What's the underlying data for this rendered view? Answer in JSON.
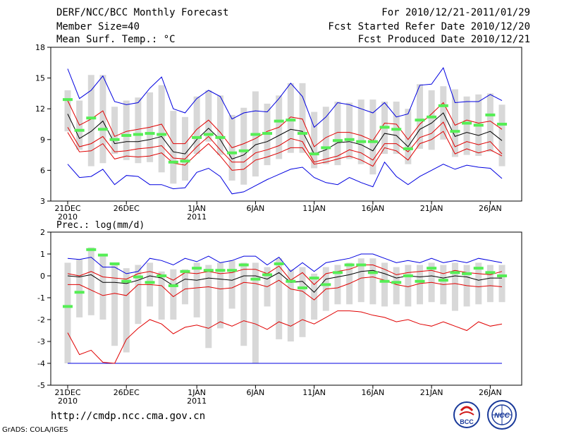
{
  "header": {
    "title": "DERF/NCC/BCC Monthly Forecast",
    "member_size": "Member Size=40",
    "variable": "Mean Surf. Temp.: °C",
    "forecast_period": "For 2010/12/21-2011/01/29",
    "started_date": "Fcst Started Refer Date 2010/12/20",
    "produced_date": "Fcst Produced Date 2010/12/21"
  },
  "footer": {
    "url": "http://cmdp.ncc.cma.gov.cn",
    "grads_credit": "GrADS: COLA/IGES",
    "logo_bcc_text": "BCC",
    "logo_ncc_text": "NCC"
  },
  "x_axis": {
    "days": 38,
    "tick_days": [
      0,
      5,
      11,
      16,
      21,
      26,
      31,
      36
    ],
    "tick_labels": [
      "21DEC",
      "26DEC",
      "1JAN",
      "6JAN",
      "11JAN",
      "16JAN",
      "21JAN",
      "26JAN"
    ],
    "year_labels": [
      {
        "day": 0,
        "text": "2010"
      },
      {
        "day": 11,
        "text": "2011"
      }
    ]
  },
  "colors": {
    "box": "#d8d8d8",
    "ensemble_mean": "#000000",
    "inner_band": "#e00000",
    "outer_band": "#0000e0",
    "observed": "#55ee55",
    "frame": "#000000"
  },
  "chart_data": [
    {
      "type": "line",
      "title": "Mean Surf. Temp.: °C",
      "ylim": [
        3,
        18
      ],
      "yticks": [
        3,
        6,
        9,
        12,
        15,
        18
      ],
      "series": [
        {
          "name": "max",
          "values": [
            15.9,
            13.0,
            13.8,
            15.2,
            12.7,
            12.4,
            12.6,
            14.0,
            15.1,
            12.0,
            11.6,
            13.0,
            13.8,
            13.2,
            11.0,
            11.6,
            11.8,
            11.7,
            13.0,
            14.5,
            13.2,
            10.2,
            11.2,
            12.6,
            12.4,
            12.0,
            11.6,
            12.6,
            11.2,
            11.5,
            14.3,
            14.4,
            16.0,
            12.6,
            12.7,
            12.7,
            13.4,
            12.8
          ]
        },
        {
          "name": "upper",
          "values": [
            12.8,
            10.4,
            11.0,
            11.8,
            9.3,
            9.8,
            10.0,
            10.2,
            10.5,
            8.6,
            8.6,
            10.0,
            10.9,
            9.7,
            8.2,
            8.6,
            9.1,
            9.8,
            10.2,
            11.2,
            11.0,
            8.3,
            9.2,
            9.7,
            9.7,
            9.4,
            8.9,
            10.6,
            10.5,
            9.0,
            10.5,
            11.5,
            12.6,
            10.4,
            10.9,
            10.6,
            10.8,
            10.0
          ]
        },
        {
          "name": "mean",
          "values": [
            11.5,
            9.1,
            9.8,
            10.8,
            8.6,
            8.8,
            8.8,
            9.0,
            9.3,
            7.8,
            7.6,
            9.0,
            10.1,
            9.0,
            7.1,
            7.5,
            8.5,
            8.8,
            9.4,
            10.0,
            9.8,
            7.6,
            8.0,
            8.7,
            8.8,
            8.5,
            7.9,
            9.6,
            9.4,
            8.3,
            10.0,
            10.6,
            11.6,
            9.3,
            9.7,
            9.4,
            9.8,
            8.9
          ]
        },
        {
          "name": "lower",
          "values": [
            10.2,
            8.3,
            8.6,
            9.3,
            7.8,
            7.9,
            8.1,
            8.2,
            8.4,
            7.2,
            7.1,
            8.3,
            9.3,
            8.0,
            6.8,
            6.8,
            7.7,
            8.0,
            8.4,
            9.1,
            8.8,
            6.8,
            7.1,
            7.4,
            8.0,
            7.7,
            7.0,
            8.6,
            8.6,
            7.8,
            9.2,
            9.6,
            10.7,
            8.3,
            8.8,
            8.5,
            8.8,
            7.6
          ]
        },
        {
          "name": "inner_low",
          "values": [
            9.7,
            7.8,
            7.9,
            8.6,
            7.1,
            7.4,
            7.3,
            7.4,
            7.7,
            6.7,
            6.5,
            7.6,
            8.6,
            7.4,
            6.0,
            6.1,
            7.0,
            7.3,
            7.7,
            8.2,
            8.2,
            6.6,
            6.8,
            7.1,
            7.4,
            7.0,
            6.4,
            8.2,
            7.9,
            7.0,
            8.6,
            9.0,
            9.8,
            7.6,
            8.1,
            7.7,
            8.0,
            7.4
          ]
        },
        {
          "name": "min",
          "values": [
            6.6,
            5.3,
            5.4,
            6.1,
            4.6,
            5.5,
            5.4,
            4.6,
            4.6,
            4.2,
            4.3,
            5.8,
            6.2,
            5.4,
            3.7,
            3.9,
            4.5,
            5.1,
            5.6,
            6.1,
            6.3,
            5.3,
            4.8,
            4.6,
            5.3,
            4.8,
            4.4,
            6.8,
            5.4,
            4.6,
            5.4,
            6.0,
            6.6,
            6.1,
            6.5,
            6.3,
            6.2,
            5.2
          ]
        },
        {
          "name": "box_high",
          "values": [
            13.8,
            12.8,
            15.3,
            15.3,
            12.2,
            12.8,
            13.1,
            13.6,
            14.3,
            11.8,
            11.2,
            13.2,
            13.8,
            13.3,
            11.4,
            12.1,
            13.7,
            12.5,
            13.3,
            14.5,
            14.5,
            11.7,
            12.2,
            12.7,
            12.6,
            12.9,
            12.9,
            12.7,
            12.7,
            12.0,
            14.4,
            13.8,
            14.2,
            13.9,
            13.2,
            13.4,
            13.5,
            12.4
          ]
        },
        {
          "name": "box_low",
          "values": [
            9.8,
            8.0,
            6.4,
            6.7,
            7.6,
            7.0,
            6.7,
            6.8,
            5.8,
            4.7,
            5.0,
            7.6,
            8.8,
            7.5,
            5.0,
            4.6,
            5.4,
            6.5,
            7.1,
            7.7,
            7.7,
            6.2,
            6.6,
            6.5,
            7.1,
            6.6,
            5.6,
            7.6,
            7.6,
            6.6,
            8.1,
            8.0,
            9.0,
            7.3,
            7.5,
            7.4,
            7.8,
            6.4
          ]
        },
        {
          "name": "observed",
          "values": [
            12.9,
            9.9,
            11.1,
            10.0,
            9.0,
            9.4,
            9.5,
            9.6,
            9.5,
            6.8,
            6.9,
            9.2,
            9.5,
            9.2,
            7.7,
            7.9,
            9.5,
            9.6,
            10.8,
            10.9,
            9.6,
            7.6,
            8.2,
            8.9,
            9.0,
            8.8,
            8.8,
            10.2,
            10.0,
            8.1,
            10.9,
            11.2,
            12.3,
            9.8,
            10.6,
            10.4,
            11.4,
            10.5
          ]
        }
      ]
    },
    {
      "type": "line",
      "title": "Prec.: log(mm/d)",
      "ylim": [
        -5,
        2
      ],
      "yticks": [
        -5,
        -4,
        -3,
        -2,
        -1,
        0,
        1,
        2
      ],
      "series": [
        {
          "name": "max",
          "values": [
            0.8,
            0.75,
            0.85,
            0.4,
            0.4,
            0.1,
            0.2,
            0.8,
            0.7,
            0.5,
            0.8,
            0.65,
            0.9,
            0.6,
            0.7,
            0.9,
            0.9,
            0.5,
            0.85,
            0.2,
            0.6,
            0.2,
            0.6,
            0.7,
            0.8,
            1.0,
            1.0,
            0.8,
            0.6,
            0.7,
            0.6,
            0.8,
            0.6,
            0.7,
            0.6,
            0.8,
            0.7,
            0.6
          ]
        },
        {
          "name": "upper",
          "values": [
            0.1,
            0.0,
            0.2,
            -0.05,
            -0.1,
            -0.15,
            0.1,
            0.2,
            0.05,
            -0.2,
            0.15,
            0.1,
            0.2,
            0.1,
            0.15,
            0.3,
            0.3,
            0.1,
            0.45,
            -0.2,
            0.15,
            -0.4,
            0.1,
            0.2,
            0.3,
            0.5,
            0.5,
            0.3,
            0.05,
            0.15,
            0.2,
            0.25,
            0.1,
            0.25,
            0.15,
            0.1,
            0.05,
            0.2
          ]
        },
        {
          "name": "mean",
          "values": [
            0.0,
            -0.05,
            0.05,
            -0.3,
            -0.3,
            -0.35,
            -0.2,
            0.0,
            -0.1,
            -0.45,
            -0.15,
            -0.2,
            -0.1,
            -0.15,
            -0.2,
            0.0,
            0.0,
            -0.15,
            0.15,
            -0.3,
            -0.25,
            -0.75,
            -0.15,
            -0.05,
            0.05,
            0.2,
            0.25,
            0.1,
            -0.1,
            0.0,
            -0.05,
            0.0,
            -0.1,
            0.0,
            -0.05,
            -0.2,
            -0.1,
            -0.1
          ]
        },
        {
          "name": "lower",
          "values": [
            -0.4,
            -0.4,
            -0.65,
            -0.9,
            -0.8,
            -0.9,
            -0.4,
            -0.4,
            -0.45,
            -0.95,
            -0.6,
            -0.55,
            -0.5,
            -0.6,
            -0.55,
            -0.3,
            -0.35,
            -0.5,
            -0.2,
            -0.6,
            -0.7,
            -1.1,
            -0.6,
            -0.55,
            -0.35,
            -0.1,
            -0.05,
            -0.2,
            -0.4,
            -0.5,
            -0.35,
            -0.3,
            -0.4,
            -0.35,
            -0.45,
            -0.5,
            -0.45,
            -0.5
          ]
        },
        {
          "name": "inner_low",
          "values": [
            -2.6,
            -3.6,
            -3.4,
            -3.95,
            -4.0,
            -2.9,
            -2.4,
            -2.0,
            -2.2,
            -2.65,
            -2.35,
            -2.25,
            -2.4,
            -2.1,
            -2.3,
            -2.05,
            -2.2,
            -2.45,
            -2.1,
            -2.3,
            -2.0,
            -2.2,
            -1.9,
            -1.6,
            -1.6,
            -1.65,
            -1.8,
            -1.9,
            -2.1,
            -2.0,
            -2.2,
            -2.3,
            -2.1,
            -2.3,
            -2.5,
            -2.1,
            -2.3,
            -2.2
          ]
        },
        {
          "name": "min",
          "values": [
            -4.0,
            -4.0,
            -4.0,
            -4.0,
            -4.0,
            -4.0,
            -4.0,
            -4.0,
            -4.0,
            -4.0,
            -4.0,
            -4.0,
            -4.0,
            -4.0,
            -4.0,
            -4.0,
            -4.0,
            -4.0,
            -4.0,
            -4.0,
            -4.0,
            -4.0,
            -4.0,
            -4.0,
            -4.0,
            -4.0,
            -4.0,
            -4.0,
            -4.0,
            -4.0,
            -4.0,
            -4.0,
            -4.0,
            -4.0,
            -4.0,
            -4.0,
            -4.0,
            -4.0
          ]
        },
        {
          "name": "box_high",
          "values": [
            0.6,
            0.75,
            1.3,
            1.0,
            0.6,
            0.35,
            0.5,
            0.6,
            0.2,
            0.3,
            0.3,
            0.6,
            0.5,
            0.6,
            0.7,
            0.6,
            0.6,
            0.4,
            0.8,
            0.3,
            0.4,
            0.1,
            0.4,
            0.5,
            0.6,
            0.8,
            0.8,
            0.6,
            0.4,
            0.5,
            0.5,
            0.6,
            0.5,
            0.6,
            0.5,
            0.6,
            0.5,
            0.5
          ]
        },
        {
          "name": "box_low",
          "values": [
            -4.0,
            -1.9,
            -1.8,
            -2.0,
            -3.2,
            -3.5,
            -2.2,
            -1.4,
            -2.0,
            -2.0,
            -1.3,
            -1.9,
            -3.3,
            -2.4,
            -1.5,
            -3.2,
            -4.0,
            -1.4,
            -2.9,
            -3.0,
            -2.8,
            -2.0,
            -1.6,
            -1.3,
            -1.3,
            -1.2,
            -1.3,
            -1.4,
            -1.3,
            -1.4,
            -1.3,
            -1.2,
            -1.3,
            -1.6,
            -1.4,
            -1.3,
            -1.2,
            -1.2
          ]
        },
        {
          "name": "observed",
          "values": [
            -1.4,
            -0.75,
            1.2,
            0.95,
            0.55,
            -0.25,
            -0.05,
            -0.3,
            0.0,
            -0.45,
            0.2,
            0.35,
            0.25,
            0.25,
            0.25,
            0.5,
            -0.15,
            0.05,
            0.55,
            -0.25,
            -0.55,
            -0.1,
            -0.4,
            0.15,
            0.5,
            0.5,
            0.15,
            -0.25,
            -0.3,
            0.0,
            -0.25,
            0.35,
            -0.2,
            0.15,
            0.1,
            0.35,
            0.15,
            0.0
          ]
        }
      ]
    }
  ]
}
